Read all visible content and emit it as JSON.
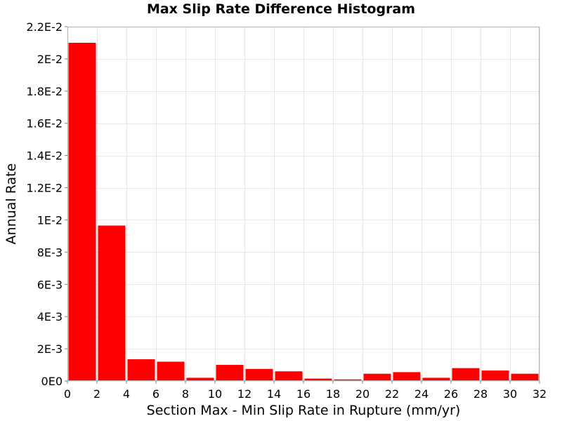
{
  "chart_data": {
    "type": "bar",
    "title": "Max Slip Rate Difference Histogram",
    "xlabel": "Section Max - Min Slip Rate in Rupture (mm/yr)",
    "ylabel": "Annual Rate",
    "xlim": [
      0,
      32
    ],
    "ylim": [
      0,
      0.022
    ],
    "grid": true,
    "bar_color": "#ff0000",
    "bin_width": 2,
    "x": [
      1,
      3,
      5,
      7,
      9,
      11,
      13,
      15,
      17,
      19,
      21,
      23,
      25,
      27,
      29,
      31
    ],
    "values": [
      0.021,
      0.00965,
      0.00135,
      0.0012,
      0.0002,
      0.001,
      0.00075,
      0.0006,
      0.00015,
      0.0001,
      0.00045,
      0.00055,
      0.0002,
      0.0008,
      0.00065,
      0.00045
    ],
    "x_ticks": [
      {
        "value": 0,
        "label": "0"
      },
      {
        "value": 2,
        "label": "2"
      },
      {
        "value": 4,
        "label": "4"
      },
      {
        "value": 6,
        "label": "6"
      },
      {
        "value": 8,
        "label": "8"
      },
      {
        "value": 10,
        "label": "10"
      },
      {
        "value": 12,
        "label": "12"
      },
      {
        "value": 14,
        "label": "14"
      },
      {
        "value": 16,
        "label": "16"
      },
      {
        "value": 18,
        "label": "18"
      },
      {
        "value": 20,
        "label": "20"
      },
      {
        "value": 22,
        "label": "22"
      },
      {
        "value": 24,
        "label": "24"
      },
      {
        "value": 26,
        "label": "26"
      },
      {
        "value": 28,
        "label": "28"
      },
      {
        "value": 30,
        "label": "30"
      },
      {
        "value": 32,
        "label": "32"
      }
    ],
    "y_ticks": [
      {
        "value": 0,
        "label": "0E0"
      },
      {
        "value": 0.002,
        "label": "2E-3"
      },
      {
        "value": 0.004,
        "label": "4E-3"
      },
      {
        "value": 0.006,
        "label": "6E-3"
      },
      {
        "value": 0.008,
        "label": "8E-3"
      },
      {
        "value": 0.01,
        "label": "1E-2"
      },
      {
        "value": 0.012,
        "label": "1.2E-2"
      },
      {
        "value": 0.014,
        "label": "1.4E-2"
      },
      {
        "value": 0.016,
        "label": "1.6E-2"
      },
      {
        "value": 0.018,
        "label": "1.8E-2"
      },
      {
        "value": 0.02,
        "label": "2E-2"
      },
      {
        "value": 0.022,
        "label": "2.2E-2"
      }
    ]
  }
}
